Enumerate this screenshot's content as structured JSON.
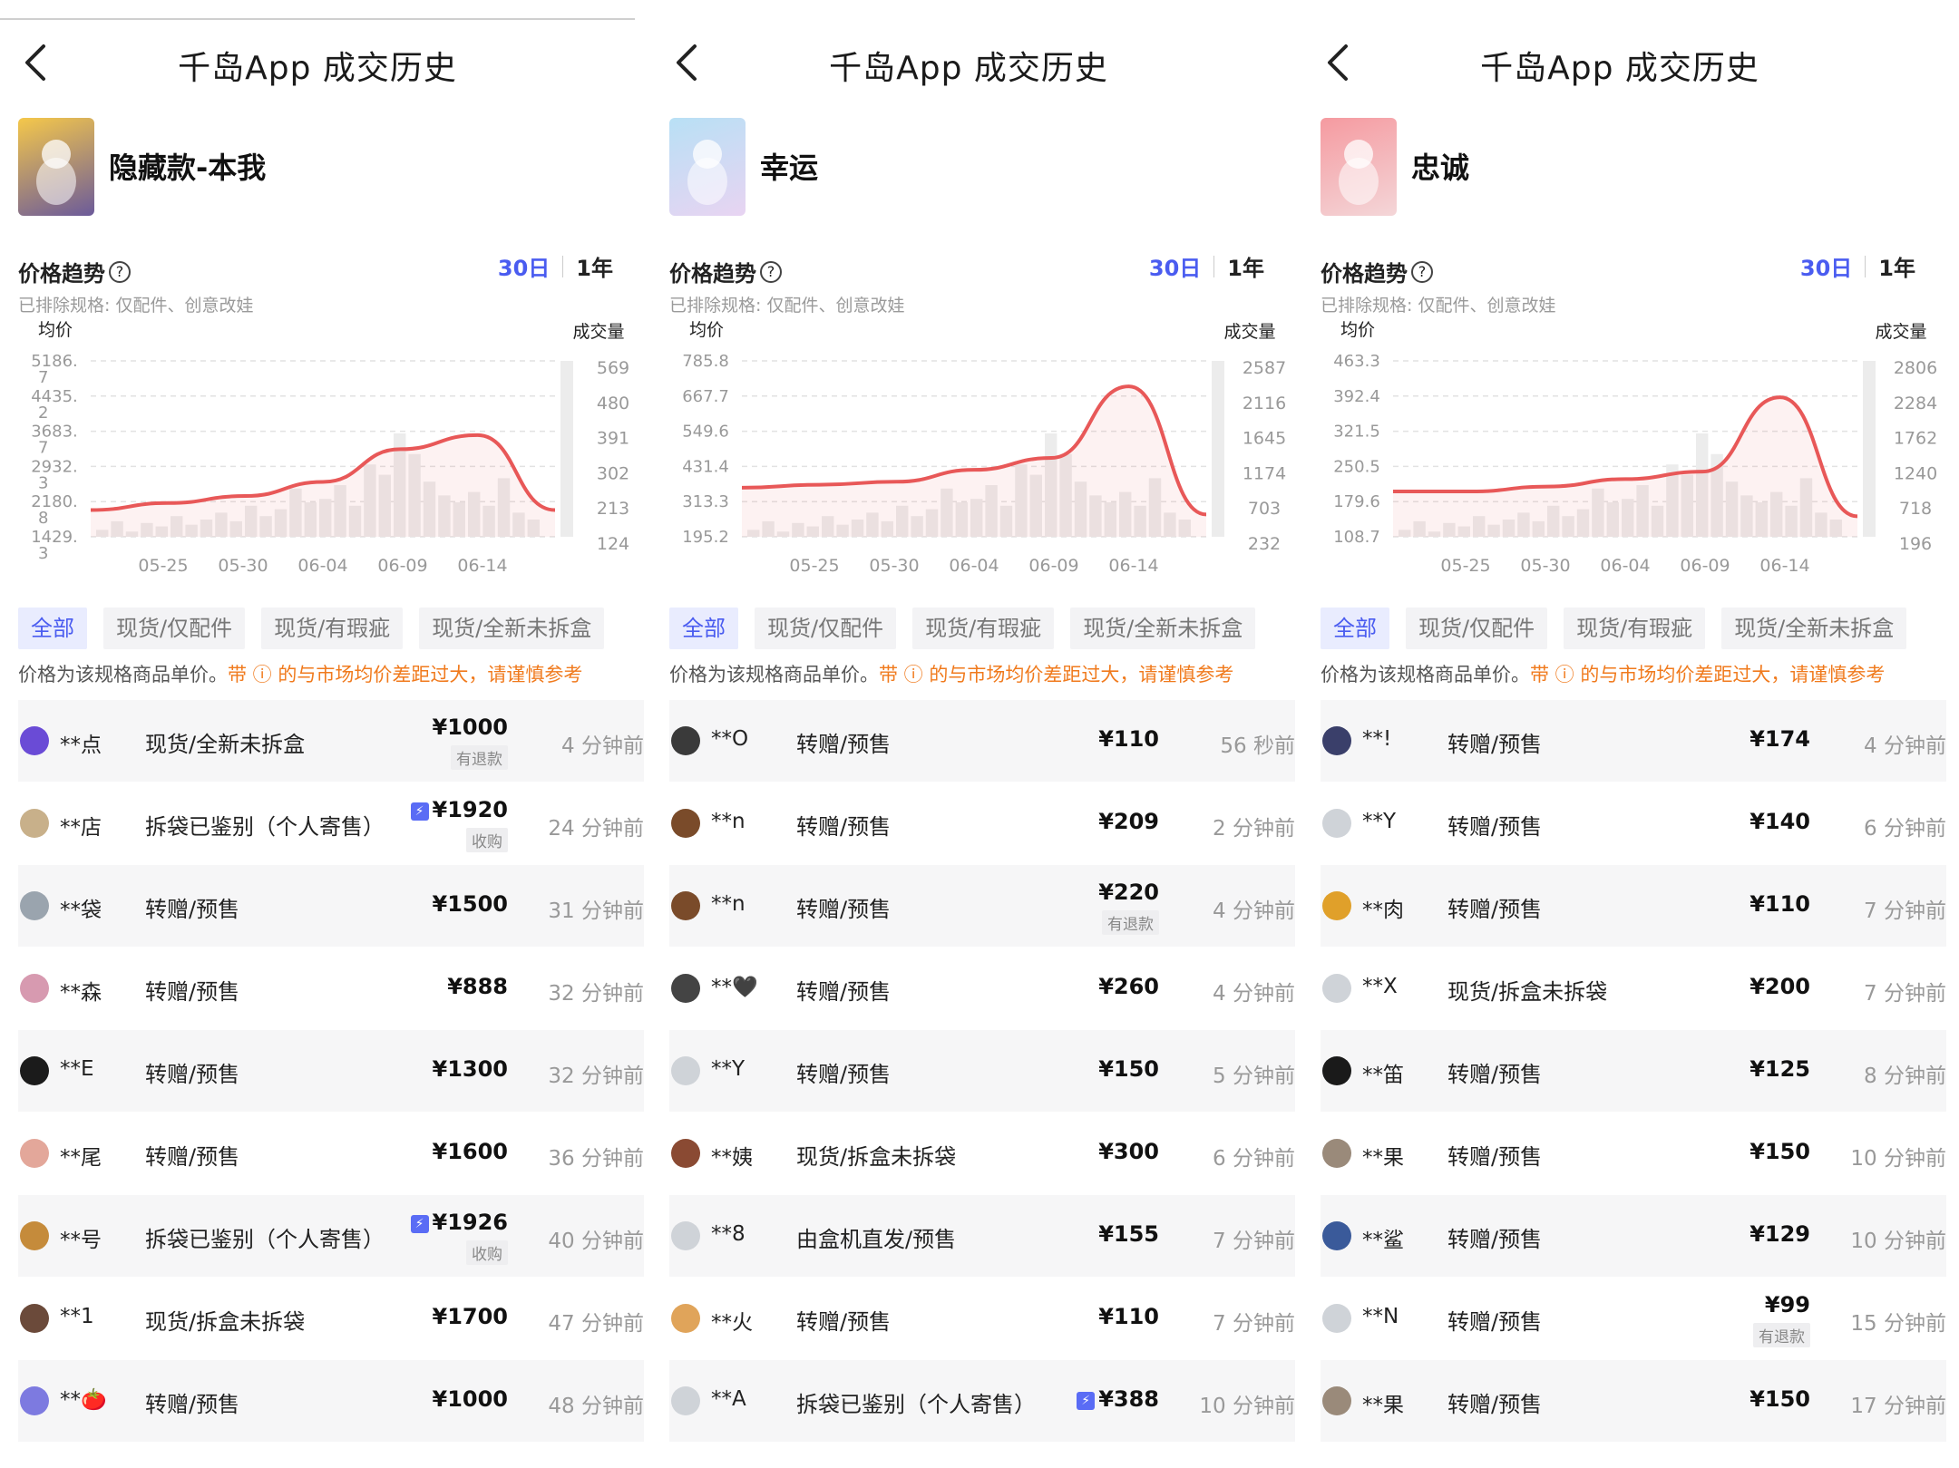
{
  "panels": [
    {
      "title": "千岛App 成交历史",
      "product": "隐藏款-本我",
      "trend_label": "价格趋势",
      "periods": [
        "30日",
        "1年"
      ],
      "excluded": "已排除规格: 仅配件、创意改娃",
      "chart": {
        "y_left_label": "均价",
        "y_right_label": "成交量",
        "y_left_ticks": [
          "5186.",
          "4435.",
          "3683.",
          "2932.",
          "2180.",
          "1429."
        ],
        "y_left_extra": [
          "7",
          "2",
          "7",
          "3",
          "8",
          "3"
        ],
        "y_right_ticks": [
          "569",
          "480",
          "391",
          "302",
          "213",
          "124"
        ],
        "x_ticks": [
          "05-25",
          "05-30",
          "06-04",
          "06-09",
          "06-14"
        ]
      },
      "tabs": [
        "全部",
        "现货/仅配件",
        "现货/有瑕疵",
        "现货/全新未拆盒"
      ],
      "note_prefix": "价格为该规格商品单价。",
      "note_warn": "带 ⓘ 的与市场均价差距过大，请谨慎参考",
      "rows": [
        {
          "user": "**点",
          "cond": "现货/全新未拆盒",
          "price": "¥1000",
          "badge": "有退款",
          "time": "4 分钟前",
          "av": "#6a4bd6"
        },
        {
          "user": "**店",
          "cond": "拆袋已鉴别（个人寄售）",
          "price": "¥1920",
          "badge": "收购",
          "tag": "⚡",
          "time": "24 分钟前",
          "av": "#c8b08a"
        },
        {
          "user": "**袋",
          "cond": "转赠/预售",
          "price": "¥1500",
          "time": "31 分钟前",
          "av": "#9aa4ae"
        },
        {
          "user": "**森",
          "cond": "转赠/预售",
          "price": "¥888",
          "time": "32 分钟前",
          "av": "#d79ab0"
        },
        {
          "user": "**E",
          "cond": "转赠/预售",
          "price": "¥1300",
          "time": "32 分钟前",
          "av": "#1b1b1b"
        },
        {
          "user": "**尾",
          "cond": "转赠/预售",
          "price": "¥1600",
          "time": "36 分钟前",
          "av": "#e3a79a"
        },
        {
          "user": "**号",
          "cond": "拆袋已鉴别（个人寄售）",
          "price": "¥1926",
          "badge": "收购",
          "tag": "⚡",
          "time": "40 分钟前",
          "av": "#c58b3b"
        },
        {
          "user": "**1",
          "cond": "现货/拆盒未拆袋",
          "price": "¥1700",
          "time": "47 分钟前",
          "av": "#6b4a3a"
        },
        {
          "user": "**🍅",
          "cond": "转赠/预售",
          "price": "¥1000",
          "time": "48 分钟前",
          "av": "#7d7ae0"
        }
      ]
    },
    {
      "title": "千岛App 成交历史",
      "product": "幸运",
      "trend_label": "价格趋势",
      "periods": [
        "30日",
        "1年"
      ],
      "excluded": "已排除规格: 仅配件、创意改娃",
      "chart": {
        "y_left_label": "均价",
        "y_right_label": "成交量",
        "y_left_ticks": [
          "785.8",
          "667.7",
          "549.6",
          "431.4",
          "313.3",
          "195.2"
        ],
        "y_left_extra": [],
        "y_right_ticks": [
          "2587",
          "2116",
          "1645",
          "1174",
          "703",
          "232"
        ],
        "x_ticks": [
          "05-25",
          "05-30",
          "06-04",
          "06-09",
          "06-14"
        ]
      },
      "tabs": [
        "全部",
        "现货/仅配件",
        "现货/有瑕疵",
        "现货/全新未拆盒"
      ],
      "note_prefix": "价格为该规格商品单价。",
      "note_warn": "带 ⓘ 的与市场均价差距过大，请谨慎参考",
      "rows": [
        {
          "user": "**O",
          "cond": "转赠/预售",
          "price": "¥110",
          "time": "56 秒前",
          "av": "#3a3a3a"
        },
        {
          "user": "**n",
          "cond": "转赠/预售",
          "price": "¥209",
          "time": "2 分钟前",
          "av": "#7a4b2a"
        },
        {
          "user": "**n",
          "cond": "转赠/预售",
          "price": "¥220",
          "badge": "有退款",
          "time": "4 分钟前",
          "av": "#7a4b2a"
        },
        {
          "user": "**🖤",
          "cond": "转赠/预售",
          "price": "¥260",
          "time": "4 分钟前",
          "av": "#444"
        },
        {
          "user": "**Y",
          "cond": "转赠/预售",
          "price": "¥150",
          "time": "5 分钟前",
          "av": "#cfd3d8"
        },
        {
          "user": "**姨",
          "cond": "现货/拆盒未拆袋",
          "price": "¥300",
          "time": "6 分钟前",
          "av": "#8a4a33"
        },
        {
          "user": "**8",
          "cond": "由盒机直发/预售",
          "price": "¥155",
          "time": "7 分钟前",
          "av": "#cfd3d8"
        },
        {
          "user": "**火",
          "cond": "转赠/预售",
          "price": "¥110",
          "time": "7 分钟前",
          "av": "#e0a45a"
        },
        {
          "user": "**A",
          "cond": "拆袋已鉴别（个人寄售）",
          "price": "¥388",
          "tag": "⚡",
          "time": "10 分钟前",
          "av": "#cfd3d8"
        }
      ]
    },
    {
      "title": "千岛App 成交历史",
      "product": "忠诚",
      "trend_label": "价格趋势",
      "periods": [
        "30日",
        "1年"
      ],
      "excluded": "已排除规格: 仅配件、创意改娃",
      "chart": {
        "y_left_label": "均价",
        "y_right_label": "成交量",
        "y_left_ticks": [
          "463.3",
          "392.4",
          "321.5",
          "250.5",
          "179.6",
          "108.7"
        ],
        "y_left_extra": [],
        "y_right_ticks": [
          "2806",
          "2284",
          "1762",
          "1240",
          "718",
          "196"
        ],
        "x_ticks": [
          "05-25",
          "05-30",
          "06-04",
          "06-09",
          "06-14"
        ]
      },
      "tabs": [
        "全部",
        "现货/仅配件",
        "现货/有瑕疵",
        "现货/全新未拆盒"
      ],
      "note_prefix": "价格为该规格商品单价。",
      "note_warn": "带 ⓘ 的与市场均价差距过大，请谨慎参考",
      "rows": [
        {
          "user": "**!",
          "cond": "转赠/预售",
          "price": "¥174",
          "time": "4 分钟前",
          "av": "#3a3f6a"
        },
        {
          "user": "**Y",
          "cond": "转赠/预售",
          "price": "¥140",
          "time": "6 分钟前",
          "av": "#cfd3d8"
        },
        {
          "user": "**肉",
          "cond": "转赠/预售",
          "price": "¥110",
          "time": "7 分钟前",
          "av": "#e0a02a"
        },
        {
          "user": "**X",
          "cond": "现货/拆盒未拆袋",
          "price": "¥200",
          "time": "7 分钟前",
          "av": "#cfd3d8"
        },
        {
          "user": "**笛",
          "cond": "转赠/预售",
          "price": "¥125",
          "time": "8 分钟前",
          "av": "#1a1a1a"
        },
        {
          "user": "**果",
          "cond": "转赠/预售",
          "price": "¥150",
          "time": "10 分钟前",
          "av": "#9a8a7a"
        },
        {
          "user": "**鲨",
          "cond": "转赠/预售",
          "price": "¥129",
          "time": "10 分钟前",
          "av": "#3a5a9a"
        },
        {
          "user": "**N",
          "cond": "转赠/预售",
          "price": "¥99",
          "badge": "有退款",
          "time": "15 分钟前",
          "av": "#cfd3d8"
        },
        {
          "user": "**果",
          "cond": "转赠/预售",
          "price": "¥150",
          "time": "17 分钟前",
          "av": "#9a8a7a"
        }
      ]
    }
  ],
  "chart_data": [
    {
      "type": "line",
      "title": "",
      "x": [
        "05-20",
        "05-25",
        "05-30",
        "06-04",
        "06-09",
        "06-14",
        "06-16"
      ],
      "series": [
        {
          "name": "",
          "values": [
            2000,
            2150,
            2300,
            2600,
            3300,
            3600,
            2000
          ]
        }
      ],
      "ylabel": "均价",
      "ylim": [
        1429.3,
        5186.7
      ]
    },
    {
      "type": "line",
      "title": "",
      "x": [
        "05-20",
        "05-25",
        "05-30",
        "06-04",
        "06-09",
        "06-14",
        "06-16"
      ],
      "series": [
        {
          "name": "",
          "values": [
            360,
            370,
            380,
            420,
            460,
            700,
            270
          ]
        }
      ],
      "ylabel": "均价",
      "ylim": [
        195.2,
        785.8
      ]
    },
    {
      "type": "line",
      "title": "",
      "x": [
        "05-20",
        "05-25",
        "05-30",
        "06-04",
        "06-09",
        "06-14",
        "06-16"
      ],
      "series": [
        {
          "name": "",
          "values": [
            200,
            200,
            210,
            225,
            240,
            390,
            150
          ]
        }
      ],
      "ylabel": "均价",
      "ylim": [
        108.7,
        463.3
      ]
    }
  ],
  "colors": {
    "accent": "#4a5cf0",
    "line": "#e85858",
    "warn": "#f07a1d"
  }
}
